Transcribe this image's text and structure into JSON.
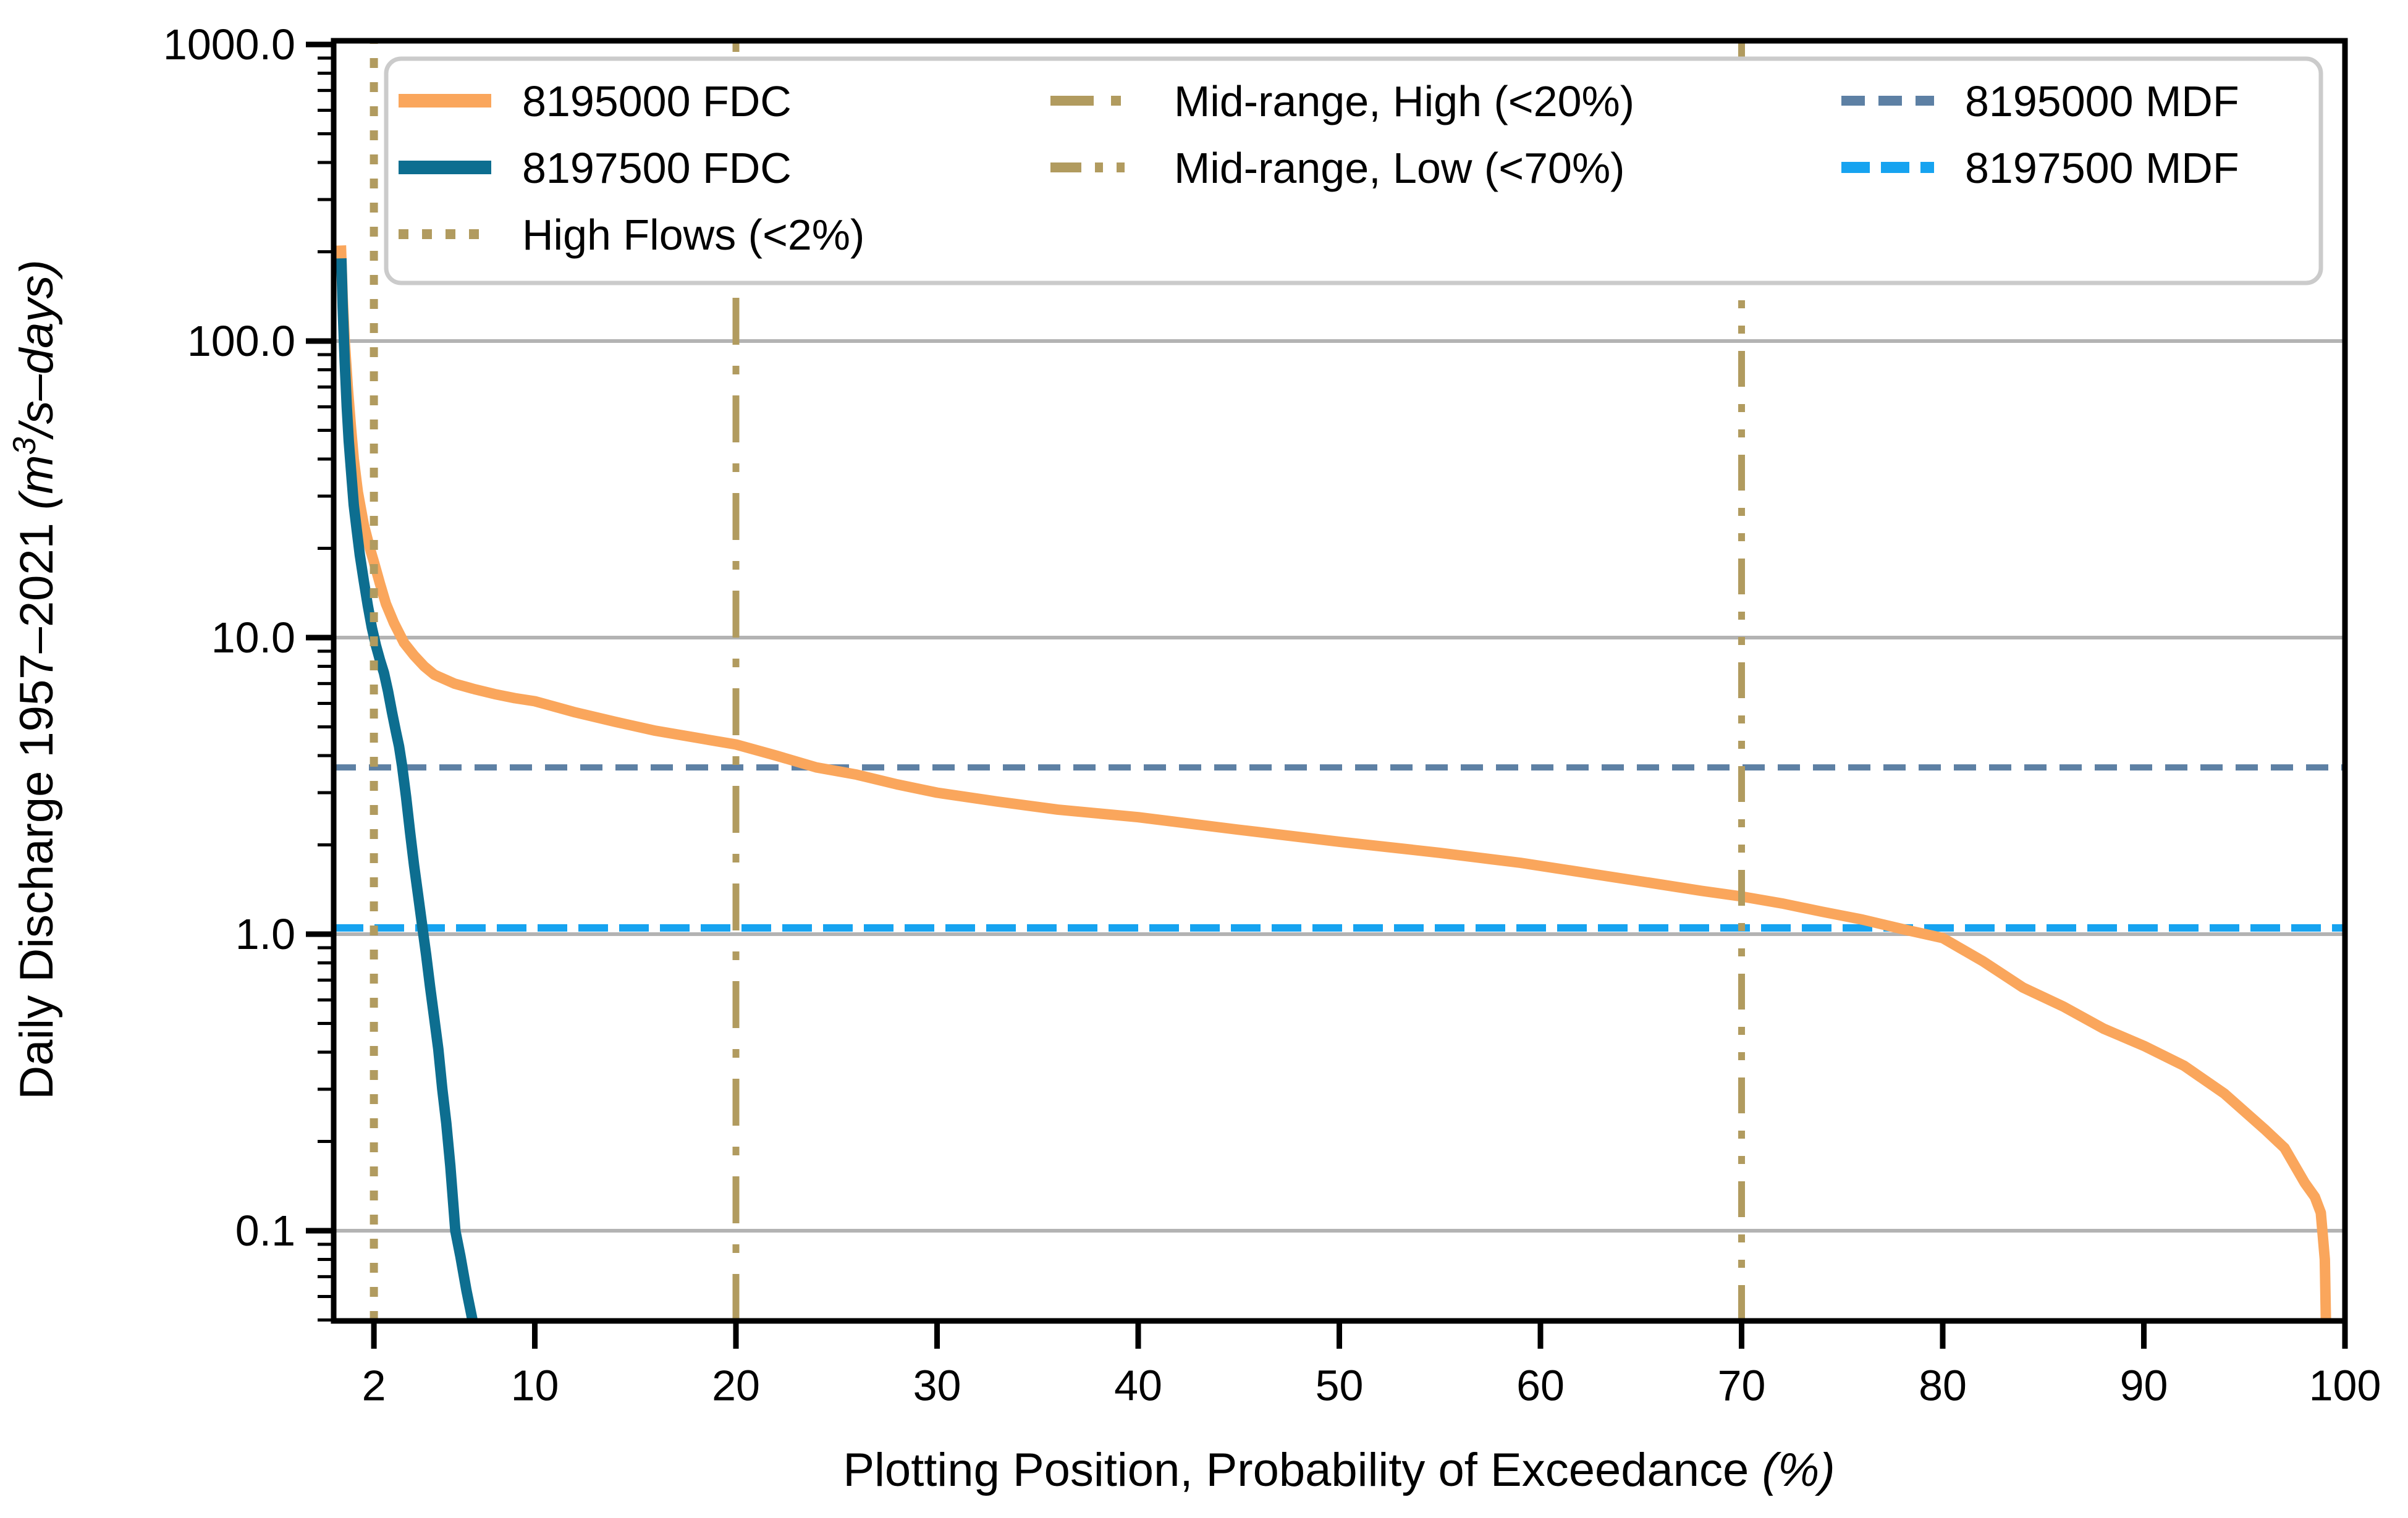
{
  "chart_data": {
    "type": "line",
    "title": "",
    "xlabel": "Plotting Position, Probability of Exceedance (%)",
    "xlabel_prefix": "Plotting Position, Probability of Exceedance ",
    "xlabel_unit": "(%)",
    "ylabel": "Daily Discharge 1957–2021 (m³/s–days)",
    "ylabel_prefix": "Daily Discharge 1957–2021 ",
    "ylabel_unit_open": "(m",
    "ylabel_sup": "3",
    "ylabel_unit_rest": "/s–days)",
    "xscale": "linear",
    "yscale": "log",
    "xlim": [
      0,
      100
    ],
    "ylim": [
      0.05,
      1030
    ],
    "grid": "horizontal-major",
    "grid_values": [
      100,
      10,
      1,
      0.1
    ],
    "x_ticks": [
      2,
      10,
      20,
      30,
      40,
      50,
      60,
      70,
      80,
      90,
      100
    ],
    "x_tick_labels": [
      "2",
      "10",
      "20",
      "30",
      "40",
      "50",
      "60",
      "70",
      "80",
      "90",
      "100"
    ],
    "y_ticks": [
      1000,
      100,
      10,
      1,
      0.1
    ],
    "y_tick_labels": [
      "1000.0",
      "100.0",
      "10.0",
      "1.0",
      "0.1"
    ],
    "legend_position": "upper center",
    "series": [
      {
        "name": "8195000 FDC",
        "color": "#FAA65C",
        "style": "solid",
        "points": [
          [
            0.36,
            210
          ],
          [
            0.45,
            140
          ],
          [
            0.55,
            100
          ],
          [
            0.7,
            70
          ],
          [
            0.85,
            52
          ],
          [
            1.0,
            40
          ],
          [
            1.2,
            31
          ],
          [
            1.5,
            24
          ],
          [
            1.8,
            20
          ],
          [
            2.0,
            18
          ],
          [
            2.3,
            15.2
          ],
          [
            2.6,
            13
          ],
          [
            3.0,
            11.2
          ],
          [
            3.5,
            9.6
          ],
          [
            4.0,
            8.7
          ],
          [
            4.5,
            8.0
          ],
          [
            5.0,
            7.5
          ],
          [
            6.0,
            7.0
          ],
          [
            7.0,
            6.7
          ],
          [
            8.0,
            6.45
          ],
          [
            9.0,
            6.25
          ],
          [
            10,
            6.1
          ],
          [
            12,
            5.6
          ],
          [
            14,
            5.2
          ],
          [
            16,
            4.85
          ],
          [
            18,
            4.6
          ],
          [
            20,
            4.36
          ],
          [
            22,
            4.0
          ],
          [
            24,
            3.65
          ],
          [
            26,
            3.45
          ],
          [
            28,
            3.2
          ],
          [
            30,
            3.0
          ],
          [
            33,
            2.8
          ],
          [
            36,
            2.63
          ],
          [
            40,
            2.48
          ],
          [
            45,
            2.25
          ],
          [
            50,
            2.05
          ],
          [
            55,
            1.88
          ],
          [
            59,
            1.74
          ],
          [
            63,
            1.58
          ],
          [
            66,
            1.47
          ],
          [
            68,
            1.4
          ],
          [
            70,
            1.34
          ],
          [
            72,
            1.27
          ],
          [
            74,
            1.19
          ],
          [
            76,
            1.12
          ],
          [
            78,
            1.04
          ],
          [
            80,
            0.97
          ],
          [
            82,
            0.81
          ],
          [
            84,
            0.66
          ],
          [
            86,
            0.57
          ],
          [
            88,
            0.48
          ],
          [
            90,
            0.42
          ],
          [
            92,
            0.36
          ],
          [
            94,
            0.29
          ],
          [
            96,
            0.22
          ],
          [
            97,
            0.19
          ],
          [
            98,
            0.145
          ],
          [
            98.5,
            0.13
          ],
          [
            98.8,
            0.115
          ],
          [
            99.0,
            0.08
          ],
          [
            99.05,
            0.05
          ]
        ]
      },
      {
        "name": "8197500 FDC",
        "color": "#0D6E90",
        "style": "solid",
        "points": [
          [
            0.38,
            190
          ],
          [
            0.45,
            130
          ],
          [
            0.55,
            85
          ],
          [
            0.65,
            60
          ],
          [
            0.75,
            46
          ],
          [
            0.9,
            34
          ],
          [
            1.0,
            28
          ],
          [
            1.15,
            23
          ],
          [
            1.3,
            19
          ],
          [
            1.5,
            15.5
          ],
          [
            1.7,
            12.8
          ],
          [
            1.9,
            10.8
          ],
          [
            2.1,
            9.4
          ],
          [
            2.3,
            8.4
          ],
          [
            2.5,
            7.6
          ],
          [
            2.7,
            6.6
          ],
          [
            2.9,
            5.6
          ],
          [
            3.1,
            4.8
          ],
          [
            3.25,
            4.3
          ],
          [
            3.4,
            3.7
          ],
          [
            3.6,
            2.9
          ],
          [
            3.8,
            2.2
          ],
          [
            4.0,
            1.7
          ],
          [
            4.2,
            1.35
          ],
          [
            4.4,
            1.07
          ],
          [
            4.6,
            0.85
          ],
          [
            4.8,
            0.66
          ],
          [
            5.0,
            0.52
          ],
          [
            5.2,
            0.41
          ],
          [
            5.4,
            0.3
          ],
          [
            5.6,
            0.23
          ],
          [
            5.8,
            0.165
          ],
          [
            6.05,
            0.1
          ],
          [
            6.3,
            0.082
          ],
          [
            6.6,
            0.063
          ],
          [
            6.9,
            0.05
          ]
        ]
      }
    ],
    "reference_lines": {
      "vertical": [
        {
          "label": "High Flows (<2%)",
          "x": 2,
          "color": "#B19B5F",
          "dash": "dotted"
        },
        {
          "label": "Mid-range, High (<20%)",
          "x": 20,
          "color": "#B19B5F",
          "dash": "dashdot"
        },
        {
          "label": "Mid-range, Low (<70%)",
          "x": 70,
          "color": "#B19B5F",
          "dash": "dashdotdot"
        }
      ],
      "horizontal": [
        {
          "label": "8195000 MDF",
          "y": 3.65,
          "color": "#5D80A4",
          "dash": "dashed"
        },
        {
          "label": "8197500 MDF",
          "y": 1.05,
          "color": "#16A3F0",
          "dash": "dashed"
        }
      ]
    }
  },
  "legend": {
    "rows": 3,
    "columns": 3
  },
  "colors": {
    "grid": "#b3b3b3",
    "legend_edge": "#cbcbcb",
    "axis": "#000000"
  }
}
